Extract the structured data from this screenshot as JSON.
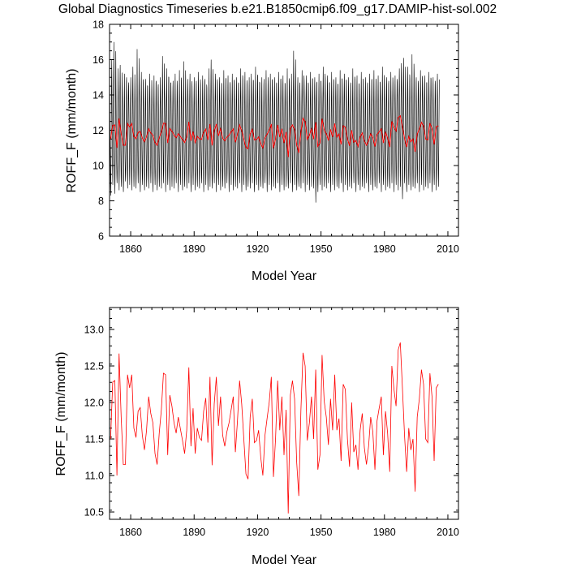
{
  "title": "Global Diagnostics Timeseries b.e21.B1850cmip6.f09_g17.DAMIP-hist-sol.002",
  "colors": {
    "monthly": "#000000",
    "annual": "#ff0000"
  },
  "chart_data": [
    {
      "type": "line",
      "xlabel": "Model Year",
      "ylabel": "ROFF_F (mm/month)",
      "xlim": [
        1850,
        2015
      ],
      "ylim": [
        6,
        18
      ],
      "x_ticks": [
        1860,
        1890,
        1920,
        1950,
        1980,
        2010
      ],
      "y_ticks": [
        6,
        8,
        10,
        12,
        14,
        16,
        18
      ],
      "x_tick_labels": [
        "1860",
        "1890",
        "1920",
        "1950",
        "1980",
        "2010"
      ],
      "y_tick_labels": [
        "6",
        "8",
        "10",
        "12",
        "14",
        "16",
        "18"
      ],
      "grid": false,
      "series": [
        {
          "kind": "monthly",
          "color": "#000000",
          "monthly_climatology_pattern": [
            15.3,
            13.9,
            12.3,
            11.1,
            10.0,
            9.0,
            8.5,
            9.2,
            10.6,
            12.0,
            13.6,
            14.9
          ],
          "peak_values": [
            15.4,
            16.0,
            17.0,
            14.6,
            15.5,
            15.7,
            14.5,
            15.2,
            15.0,
            14.5,
            15.0,
            15.6,
            14.4,
            16.6,
            14.8,
            15.3,
            14.7,
            14.9,
            14.5,
            15.2,
            14.3,
            15.1,
            14.8,
            14.6,
            15.0,
            16.2,
            14.5,
            15.5,
            15.0,
            14.7,
            14.8,
            15.2,
            14.5,
            15.4,
            14.8,
            15.9,
            14.6,
            14.9,
            15.2,
            14.5,
            15.0,
            14.8,
            15.3,
            14.6,
            15.1,
            14.9,
            14.4,
            15.5,
            16.0,
            14.8,
            15.2,
            14.7,
            15.0,
            14.6,
            15.4,
            14.9,
            15.1,
            14.6,
            15.2,
            14.8,
            15.0,
            14.7,
            15.5,
            14.9,
            15.3,
            14.6,
            15.0,
            15.2,
            14.8,
            15.6,
            15.1,
            14.7,
            15.0,
            14.9,
            15.4,
            14.6,
            15.2,
            14.8,
            15.0,
            14.7,
            15.3,
            14.9,
            15.1,
            14.6,
            15.5,
            14.8,
            15.2,
            16.5,
            14.9,
            15.0,
            14.7,
            15.4,
            14.8,
            15.1,
            14.6,
            15.3,
            14.9,
            15.0,
            14.7,
            15.2,
            14.8,
            15.6,
            14.9,
            15.1,
            14.7,
            15.3,
            14.8,
            15.0,
            14.6,
            15.4,
            14.9,
            15.2,
            14.8,
            15.0,
            14.7,
            15.5,
            14.9,
            15.1,
            14.6,
            15.3,
            14.8,
            15.0,
            14.7,
            15.2,
            14.9,
            15.4,
            14.8,
            15.1,
            14.7,
            15.6,
            14.9,
            15.0,
            14.8,
            15.3,
            14.7,
            15.1,
            14.9,
            15.5,
            15.8,
            16.1,
            15.0,
            15.6,
            14.9,
            16.3,
            15.2,
            15.0,
            14.8,
            15.4,
            14.9,
            15.1,
            14.7,
            15.3,
            14.9,
            15.0,
            14.8,
            15.2,
            14.6,
            15.4,
            14.9,
            15.1,
            14.7,
            15.0,
            14.8,
            15.3
          ],
          "trough_values": [
            8.3,
            8.9,
            8.4,
            9.0,
            8.6,
            8.8,
            8.5,
            9.1,
            8.7,
            8.9,
            8.6,
            8.8,
            8.7,
            9.0,
            8.5,
            8.9,
            8.6,
            8.8,
            8.7,
            9.0,
            8.5,
            8.9,
            8.6,
            8.8,
            8.7,
            9.0,
            8.5,
            8.9,
            8.6,
            8.8,
            8.7,
            9.0,
            8.5,
            8.9,
            8.6,
            8.8,
            8.7,
            9.0,
            8.5,
            8.9,
            8.6,
            8.8,
            8.7,
            9.0,
            8.5,
            8.9,
            8.6,
            8.8,
            8.7,
            9.0,
            8.5,
            8.9,
            8.6,
            8.8,
            8.7,
            9.0,
            8.5,
            8.9,
            8.6,
            8.8,
            8.7,
            9.0,
            8.5,
            8.9,
            8.6,
            8.8,
            8.7,
            9.0,
            8.5,
            8.9,
            8.6,
            8.8,
            8.7,
            9.0,
            8.5,
            8.9,
            8.6,
            8.8,
            8.7,
            9.0,
            8.5,
            8.9,
            8.6,
            8.8,
            8.7,
            9.0,
            8.5,
            8.9,
            8.6,
            8.8,
            8.7,
            9.0,
            8.5,
            8.9,
            8.6,
            8.8,
            8.7,
            7.9,
            8.5,
            8.9,
            8.6,
            8.8,
            8.7,
            9.0,
            8.5,
            8.9,
            8.6,
            8.8,
            8.7,
            9.0,
            8.5,
            8.9,
            8.6,
            8.8,
            8.7,
            9.0,
            8.5,
            8.9,
            8.6,
            8.8,
            8.7,
            9.0,
            8.5,
            8.9,
            8.6,
            8.8,
            8.7,
            9.0,
            8.5,
            8.9,
            8.6,
            8.8,
            8.7,
            9.0,
            8.5,
            8.9,
            8.6,
            8.8,
            8.1,
            9.0,
            8.5,
            8.9,
            8.6,
            8.8,
            8.7,
            9.0,
            8.5,
            8.9,
            8.6,
            8.8,
            8.7,
            9.0,
            8.5,
            8.9,
            8.6,
            8.8,
            8.7,
            9.0,
            8.5,
            8.9,
            8.6,
            8.8,
            8.7,
            9.0,
            8.5
          ]
        },
        {
          "kind": "annual",
          "color": "#ff0000",
          "ref": "annual_means"
        }
      ]
    },
    {
      "type": "line",
      "xlabel": "Model Year",
      "ylabel": "ROFF_F (mm/month)",
      "xlim": [
        1850,
        2015
      ],
      "ylim": [
        10.4,
        13.3
      ],
      "x_ticks": [
        1860,
        1890,
        1920,
        1950,
        1980,
        2010
      ],
      "y_ticks": [
        10.5,
        11.0,
        11.5,
        12.0,
        12.5,
        13.0
      ],
      "x_tick_labels": [
        "1860",
        "1890",
        "1920",
        "1950",
        "1980",
        "2010"
      ],
      "y_tick_labels": [
        "10.5",
        "11.0",
        "11.5",
        "12.0",
        "12.5",
        "13.0"
      ],
      "grid": false,
      "series": [
        {
          "kind": "annual",
          "color": "#ff0000",
          "ref": "annual_means"
        }
      ]
    }
  ],
  "annual_means": {
    "start_year": 1850,
    "values": [
      11.5,
      12.28,
      12.3,
      11.0,
      12.67,
      11.8,
      11.15,
      11.15,
      12.38,
      12.2,
      12.38,
      11.65,
      11.52,
      11.88,
      11.93,
      11.55,
      11.35,
      11.62,
      12.08,
      11.85,
      11.72,
      11.3,
      11.15,
      11.58,
      11.9,
      12.4,
      12.38,
      11.28,
      12.1,
      11.95,
      11.72,
      11.58,
      11.8,
      11.64,
      11.48,
      11.3,
      11.62,
      12.48,
      11.4,
      11.92,
      11.3,
      11.65,
      11.52,
      11.48,
      11.88,
      12.06,
      11.45,
      12.35,
      11.14,
      11.98,
      12.35,
      11.68,
      12.08,
      11.55,
      11.4,
      11.6,
      11.72,
      11.9,
      12.08,
      11.32,
      11.75,
      12.3,
      11.98,
      11.5,
      11.02,
      10.95,
      11.8,
      12.05,
      11.45,
      11.48,
      11.62,
      11.25,
      11.0,
      11.55,
      11.78,
      12.0,
      12.35,
      10.98,
      11.5,
      12.3,
      11.62,
      12.08,
      11.28,
      11.9,
      10.48,
      12.1,
      12.3,
      12.05,
      11.18,
      10.72,
      11.9,
      12.68,
      12.5,
      11.48,
      11.72,
      12.08,
      11.5,
      12.45,
      11.08,
      11.28,
      12.65,
      12.02,
      11.8,
      11.42,
      12.05,
      11.62,
      12.38,
      11.62,
      11.78,
      11.2,
      12.25,
      12.18,
      11.5,
      11.12,
      12.0,
      11.32,
      11.42,
      11.08,
      11.62,
      11.85,
      11.38,
      11.15,
      11.4,
      11.8,
      11.6,
      11.08,
      11.75,
      11.92,
      12.08,
      11.28,
      11.88,
      11.58,
      11.05,
      12.5,
      12.18,
      11.95,
      12.72,
      12.82,
      12.2,
      11.55,
      11.05,
      11.65,
      11.35,
      11.5,
      10.78,
      11.8,
      12.05,
      12.45,
      12.25,
      11.5,
      11.45,
      12.4,
      12.08,
      11.2,
      12.2,
      12.25
    ]
  }
}
